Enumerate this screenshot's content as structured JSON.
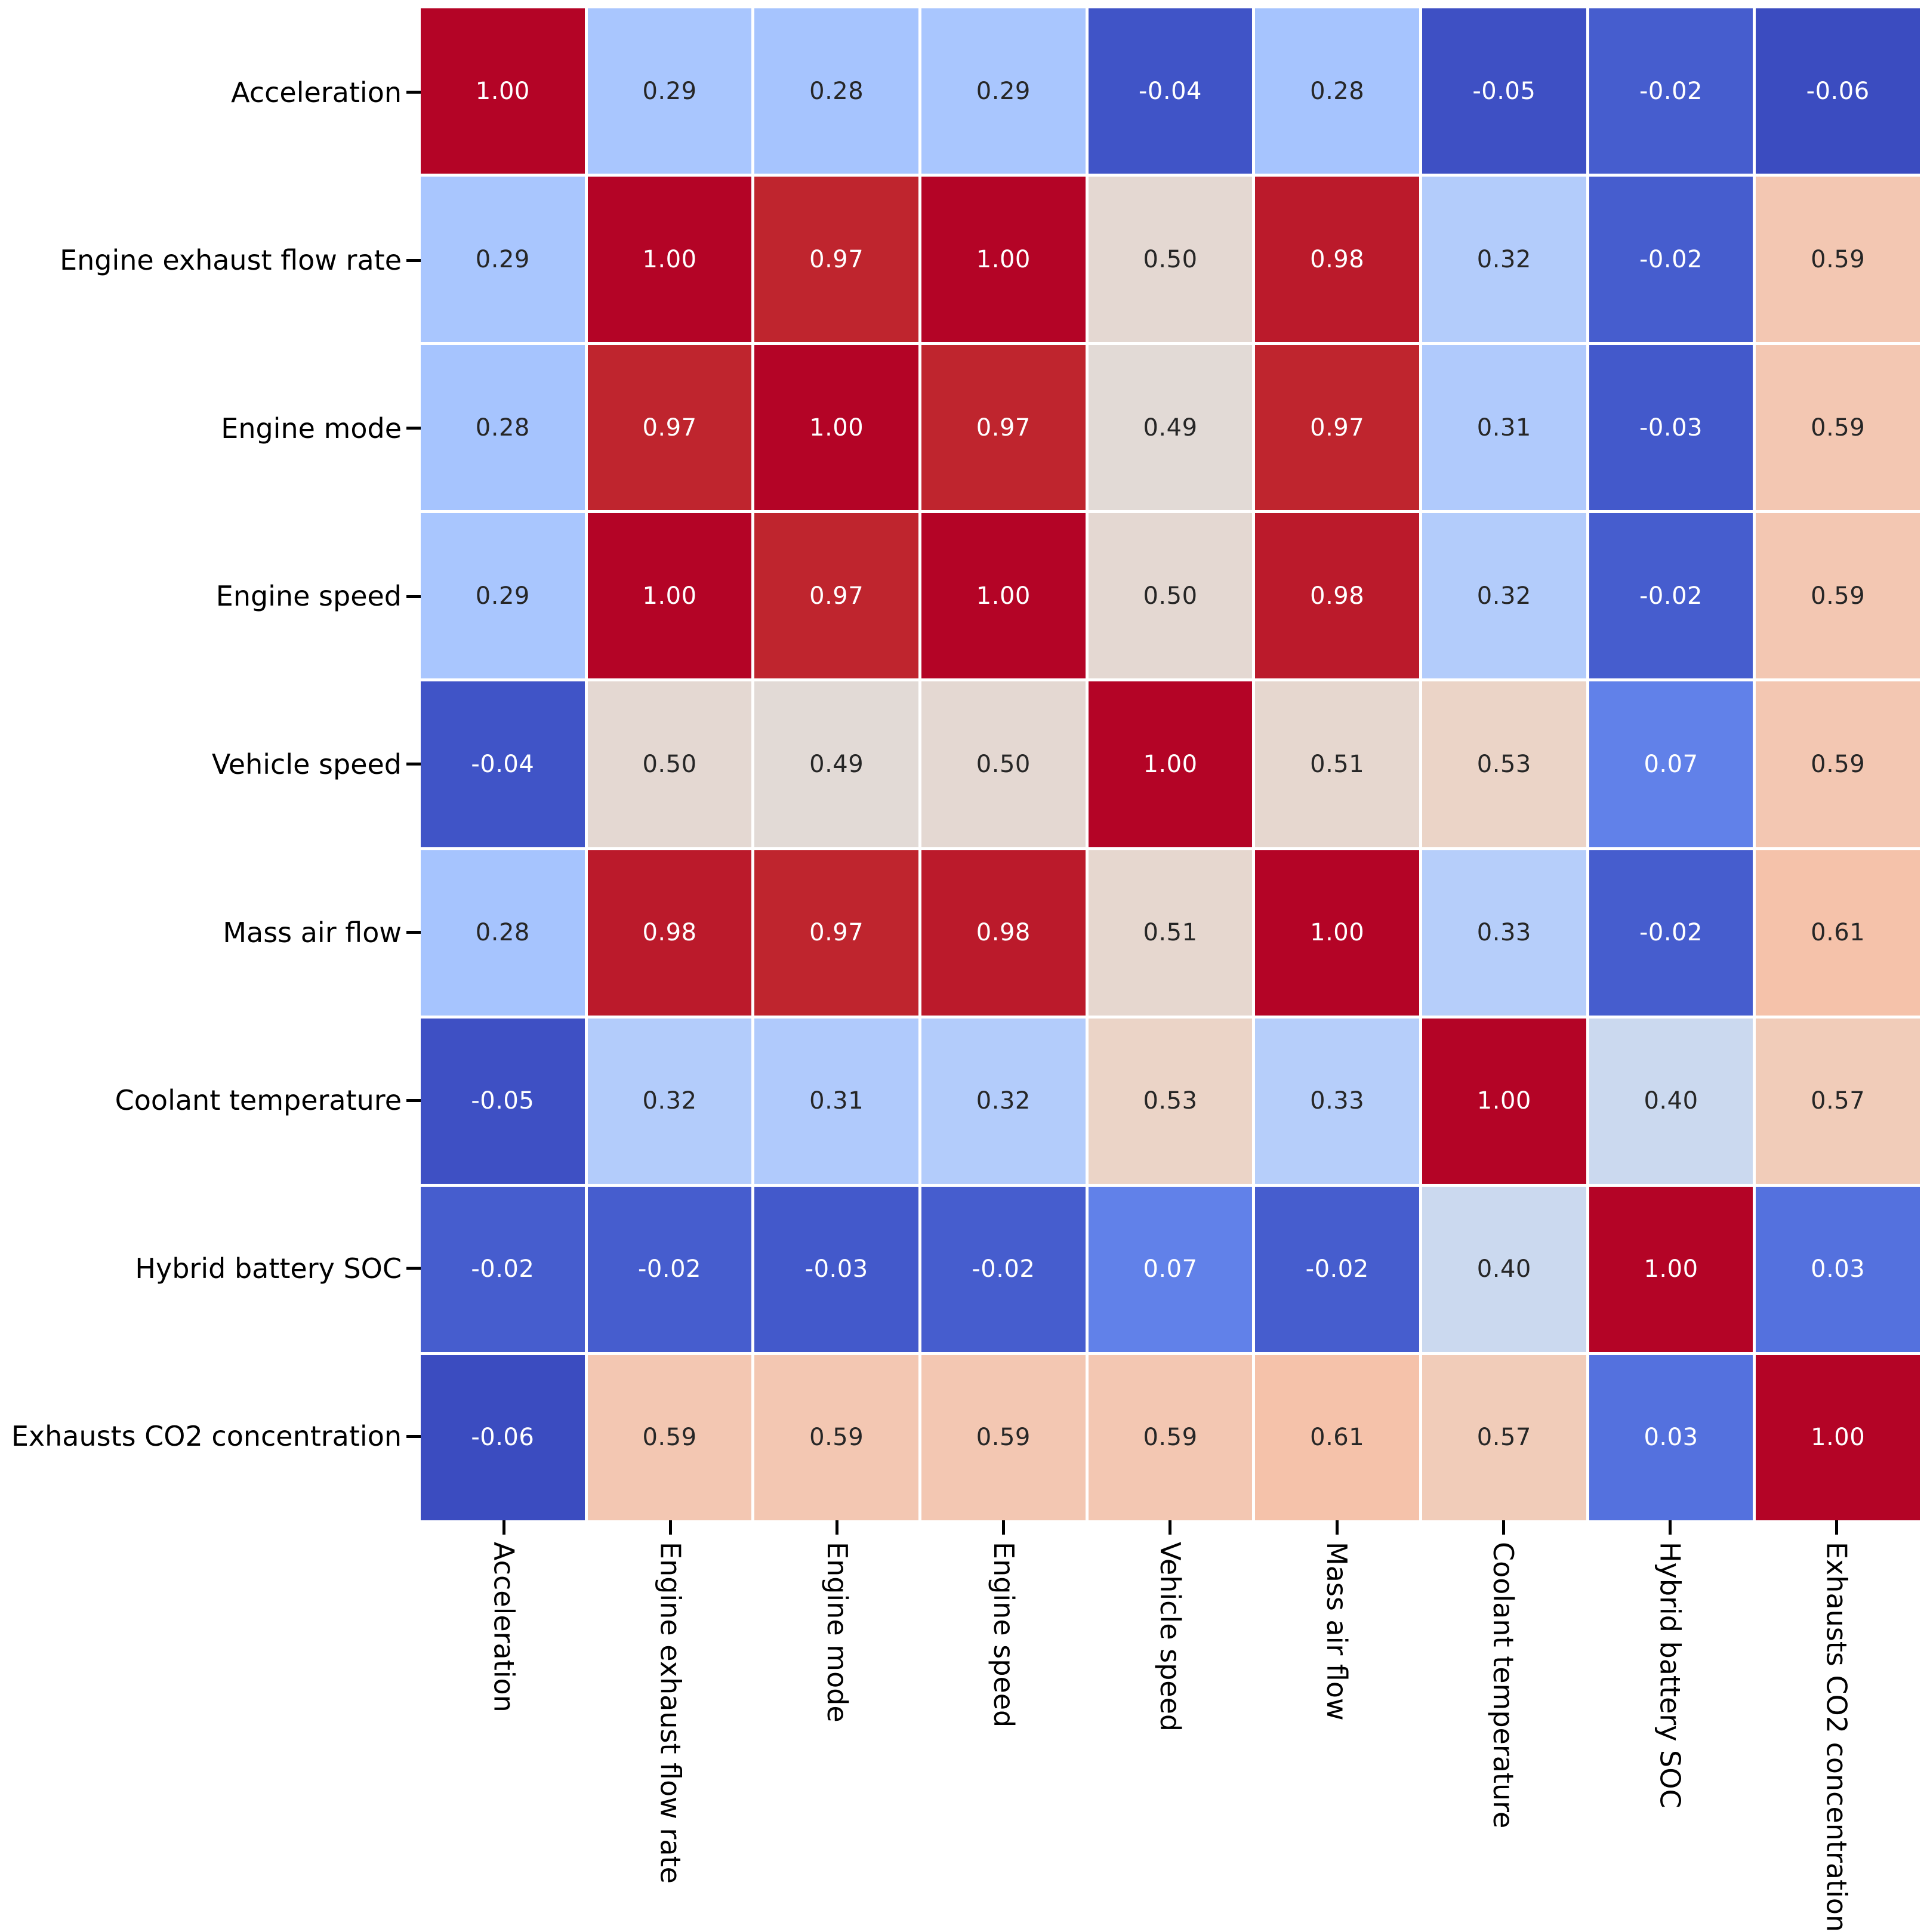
{
  "chart_data": {
    "type": "heatmap",
    "title": "",
    "xlabel": "",
    "ylabel": "",
    "variables": [
      "Acceleration",
      "Engine exhaust flow rate",
      "Engine mode",
      "Engine speed",
      "Vehicle speed",
      "Mass air flow",
      "Coolant temperature",
      "Hybrid battery SOC",
      "Exhausts CO2 concentration"
    ],
    "matrix": [
      [
        1.0,
        0.29,
        0.28,
        0.29,
        -0.04,
        0.28,
        -0.05,
        -0.02,
        -0.06
      ],
      [
        0.29,
        1.0,
        0.97,
        1.0,
        0.5,
        0.98,
        0.32,
        -0.02,
        0.59
      ],
      [
        0.28,
        0.97,
        1.0,
        0.97,
        0.49,
        0.97,
        0.31,
        -0.03,
        0.59
      ],
      [
        0.29,
        1.0,
        0.97,
        1.0,
        0.5,
        0.98,
        0.32,
        -0.02,
        0.59
      ],
      [
        -0.04,
        0.5,
        0.49,
        0.5,
        1.0,
        0.51,
        0.53,
        0.07,
        0.59
      ],
      [
        0.28,
        0.98,
        0.97,
        0.98,
        0.51,
        1.0,
        0.33,
        -0.02,
        0.61
      ],
      [
        -0.05,
        0.32,
        0.31,
        0.32,
        0.53,
        0.33,
        1.0,
        0.4,
        0.57
      ],
      [
        -0.02,
        -0.02,
        -0.03,
        -0.02,
        0.07,
        -0.02,
        0.4,
        1.0,
        0.03
      ],
      [
        -0.06,
        0.59,
        0.59,
        0.59,
        0.59,
        0.61,
        0.57,
        0.03,
        1.0
      ]
    ],
    "value_decimals": 2,
    "vmin": -0.06,
    "vmax": 1.0,
    "colormap": "coolwarm",
    "colorscale": [
      "#3b4cc0",
      "#445acc",
      "#4d68d7",
      "#5775e1",
      "#6282ea",
      "#6c8ef1",
      "#779af7",
      "#82a5fb",
      "#8db0fe",
      "#98b9ff",
      "#a3c2ff",
      "#aec9fd",
      "#b8d0f9",
      "#c2d5f4",
      "#ccd9ee",
      "#d5dbe6",
      "#dddddd",
      "#e5d8d1",
      "#ecd3c5",
      "#f1ccb9",
      "#f5c4ad",
      "#f7bba0",
      "#f7b194",
      "#f7a687",
      "#f49a7b",
      "#f18d6f",
      "#ec7f63",
      "#e57058",
      "#de604d",
      "#d55042",
      "#cb3e38",
      "#c0282f",
      "#b40426"
    ],
    "annotation_color_light": "#ffffff",
    "annotation_color_dark": "#262626",
    "tick_color": "#000000",
    "gridline_color": "#ffffff",
    "legend": "none",
    "colorbar": "none"
  }
}
